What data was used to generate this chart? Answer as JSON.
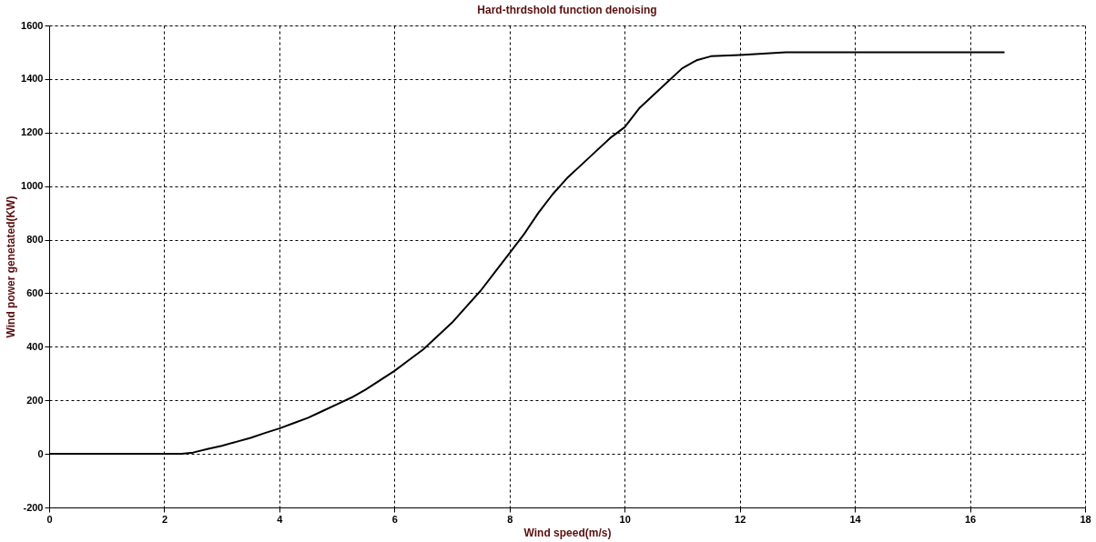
{
  "chart_data": {
    "type": "line",
    "title": "Hard-thrdshold function denoising",
    "xlabel": "Wind speed(m/s)",
    "ylabel": "Wind power genetated(KW)",
    "x": [
      0,
      1,
      2,
      2.3,
      2.5,
      2.75,
      3,
      3.25,
      3.5,
      3.75,
      4,
      4.25,
      4.5,
      4.75,
      5,
      5.25,
      5.5,
      5.75,
      6,
      6.25,
      6.5,
      6.75,
      7,
      7.25,
      7.5,
      7.75,
      8,
      8.25,
      8.5,
      8.75,
      9,
      9.25,
      9.5,
      9.75,
      10,
      10.25,
      10.5,
      10.75,
      11,
      11.25,
      11.5,
      12,
      12.8,
      14,
      16.6
    ],
    "series": [
      {
        "color": "#000000",
        "values": [
          0,
          0,
          0,
          0,
          5,
          18,
          30,
          45,
          60,
          78,
          95,
          115,
          135,
          160,
          185,
          210,
          240,
          275,
          310,
          350,
          390,
          440,
          490,
          550,
          610,
          680,
          750,
          820,
          900,
          970,
          1030,
          1080,
          1130,
          1180,
          1220,
          1290,
          1340,
          1390,
          1440,
          1470,
          1485,
          1490,
          1500,
          1500,
          1500
        ]
      }
    ],
    "xlim": [
      0,
      18
    ],
    "xticks": [
      0,
      2,
      4,
      6,
      8,
      10,
      12,
      14,
      16,
      18
    ],
    "ylim": [
      -200,
      1600
    ],
    "yticks": [
      -200,
      0,
      200,
      400,
      600,
      800,
      1000,
      1200,
      1400,
      1600
    ],
    "grid": true,
    "marker": "none",
    "line_style": "solid",
    "legend": false
  }
}
